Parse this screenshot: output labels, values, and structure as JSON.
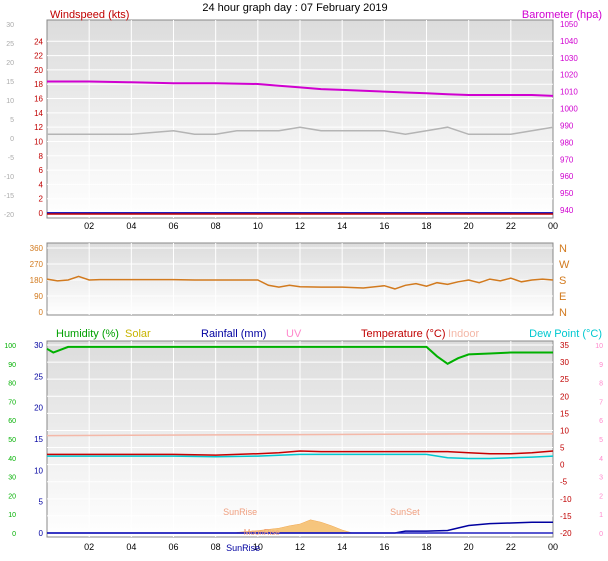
{
  "title": "24 hour graph day : 07 February 2019",
  "colors": {
    "wind": "#c00000",
    "baro": "#d000d0",
    "gust": "#b4b4b4",
    "dir": "#d27a1e",
    "humidity": "#00b000",
    "solar": "#c8b400",
    "rain": "#0000a0",
    "uv": "#ff88cc",
    "temp": "#c80000",
    "indoor": "#f4b8a8",
    "dew": "#00c8d0",
    "axis": "#000000"
  },
  "chart_data": [
    {
      "type": "line",
      "name": "wind-baro",
      "left_label": "Windspeed (kts)",
      "right_label": "Barometer (hpa)",
      "x_ticks": [
        "02",
        "04",
        "06",
        "08",
        "10",
        "12",
        "14",
        "16",
        "18",
        "20",
        "22",
        "00"
      ],
      "left_outer_ticks": [
        "30",
        "25",
        "20",
        "15",
        "10",
        "5",
        "0",
        "-5",
        "-10",
        "-15",
        "-20"
      ],
      "left_inner_ticks": [
        "24",
        "22",
        "20",
        "18",
        "16",
        "14",
        "12",
        "10",
        "8",
        "6",
        "4",
        "2",
        "0"
      ],
      "right_ticks": [
        "1050",
        "1040",
        "1030",
        "1020",
        "1010",
        "1000",
        "990",
        "980",
        "970",
        "960",
        "950",
        "940"
      ],
      "x_range": [
        0,
        24
      ],
      "wind_range": [
        0,
        26
      ],
      "baro_range": [
        940,
        1050
      ],
      "barometer": {
        "x": [
          0,
          2,
          4,
          6,
          8,
          10,
          11,
          12,
          13,
          14,
          15,
          16,
          17,
          18,
          19,
          20,
          21,
          22,
          23,
          24
        ],
        "y": [
          1016,
          1016,
          1015.5,
          1015,
          1015,
          1014.5,
          1013.5,
          1012.5,
          1011.5,
          1011,
          1010.5,
          1010,
          1009.5,
          1009,
          1008.5,
          1008,
          1008,
          1008,
          1008,
          1007.5
        ]
      },
      "gust": {
        "x": [
          0,
          2,
          4,
          6,
          7,
          8,
          9,
          10,
          11,
          12,
          13,
          14,
          15,
          16,
          17,
          18,
          19,
          20,
          21,
          22,
          23,
          24
        ],
        "y": [
          11,
          11,
          11,
          11.5,
          11,
          11,
          11.5,
          11.5,
          11.5,
          12,
          11.5,
          11.5,
          11.5,
          11.5,
          11,
          11.5,
          12,
          11,
          11,
          11,
          11.5,
          12
        ]
      },
      "windspeed": {
        "x": [
          0,
          24
        ],
        "y": [
          0,
          0
        ]
      }
    },
    {
      "type": "line",
      "name": "wind-direction",
      "left_ticks": [
        "360",
        "270",
        "180",
        "90",
        "0"
      ],
      "right_ticks": [
        "N",
        "W",
        "S",
        "E",
        "N"
      ],
      "y_range": [
        0,
        360
      ],
      "direction": {
        "x": [
          0,
          0.5,
          1,
          1.5,
          2,
          2.5,
          3,
          4,
          5,
          6,
          7,
          8,
          9,
          10,
          10.5,
          11,
          11.5,
          12,
          13,
          14,
          15,
          16,
          16.5,
          17,
          17.5,
          18,
          18.5,
          19,
          19.5,
          20,
          20.5,
          21,
          21.5,
          22,
          22.5,
          23,
          23.5,
          24
        ],
        "y": [
          185,
          175,
          180,
          200,
          180,
          182,
          182,
          182,
          182,
          182,
          180,
          180,
          180,
          180,
          150,
          140,
          150,
          142,
          140,
          140,
          135,
          148,
          130,
          150,
          160,
          145,
          165,
          155,
          170,
          180,
          165,
          185,
          175,
          190,
          170,
          180,
          185,
          180
        ]
      }
    },
    {
      "type": "line",
      "name": "temp-humidity-rain",
      "labels": [
        "Humidity (%)",
        "Solar",
        "Rainfall (mm)",
        "UV",
        "Temperature (°C)",
        "Indoor",
        "Dew Point (°C)"
      ],
      "left_outer_ticks": [
        "100",
        "90",
        "80",
        "70",
        "60",
        "50",
        "40",
        "30",
        "20",
        "10",
        "0"
      ],
      "left_inner_ticks": [
        "30",
        "25",
        "20",
        "15",
        "10",
        "5",
        "0"
      ],
      "right_outer_ticks": [
        "10",
        "9",
        "8",
        "7",
        "6",
        "5",
        "4",
        "3",
        "2",
        "1",
        "0"
      ],
      "right_inner_ticks": [
        "35",
        "30",
        "25",
        "20",
        "15",
        "10",
        "5",
        "0",
        "-5",
        "-10",
        "-15",
        "-20"
      ],
      "x_ticks": [
        "02",
        "04",
        "06",
        "08",
        "10",
        "12",
        "14",
        "16",
        "18",
        "20",
        "22",
        "00"
      ],
      "annotations": [
        {
          "text": "SunRise",
          "x": 7.5
        },
        {
          "text": "SunSet",
          "x": 16.5
        },
        {
          "text": "SunRise",
          "x": 7.5
        },
        {
          "text": "MoonRise",
          "x": 9
        }
      ],
      "temp_range": [
        -20,
        35
      ],
      "humidity": {
        "x": [
          0,
          0.3,
          1,
          4,
          8,
          12,
          16,
          17,
          18,
          18.5,
          19,
          19.5,
          20,
          21,
          22,
          23,
          24
        ],
        "y": [
          98,
          96,
          99,
          99,
          99,
          99,
          99,
          99,
          99,
          94,
          90,
          93,
          95,
          95.5,
          96,
          96,
          96
        ]
      },
      "temperature": {
        "x": [
          0,
          2,
          4,
          6,
          8,
          9,
          10,
          11,
          12,
          13,
          14,
          15,
          16,
          17,
          18,
          19,
          20,
          21,
          22,
          23,
          24
        ],
        "y": [
          3,
          3,
          3,
          3,
          2.8,
          3,
          3.2,
          3.5,
          4,
          3.8,
          3.8,
          3.8,
          3.8,
          3.8,
          3.8,
          3.8,
          3.5,
          3.2,
          3.2,
          3.5,
          4
        ]
      },
      "dewpoint": {
        "x": [
          0,
          2,
          4,
          6,
          8,
          10,
          12,
          14,
          16,
          17,
          18,
          19,
          20,
          21,
          22,
          23,
          24
        ],
        "y": [
          2.5,
          2.5,
          2.5,
          2.5,
          2.3,
          2.5,
          3,
          3,
          3,
          3,
          3,
          2,
          1.8,
          1.8,
          2,
          2.2,
          2.5
        ]
      },
      "indoor": {
        "x": [
          0,
          4,
          8,
          12,
          16,
          20,
          24
        ],
        "y": [
          8.5,
          8.6,
          8.7,
          8.8,
          8.9,
          9,
          9
        ]
      },
      "rainfall": {
        "x": [
          0,
          16.5,
          17,
          18,
          19,
          19.5,
          20,
          21,
          22,
          23,
          24
        ],
        "y": [
          0,
          0,
          0.3,
          0.3,
          0.4,
          0.8,
          1.2,
          1.5,
          1.6,
          1.7,
          1.7
        ]
      },
      "solar": {
        "x": [
          9,
          10,
          11,
          11.5,
          12,
          12.5,
          13,
          13.5,
          14,
          14.5
        ],
        "y": [
          0.1,
          0.4,
          0.8,
          1.2,
          1.5,
          2.2,
          1.8,
          1.2,
          0.5,
          0
        ]
      }
    }
  ]
}
